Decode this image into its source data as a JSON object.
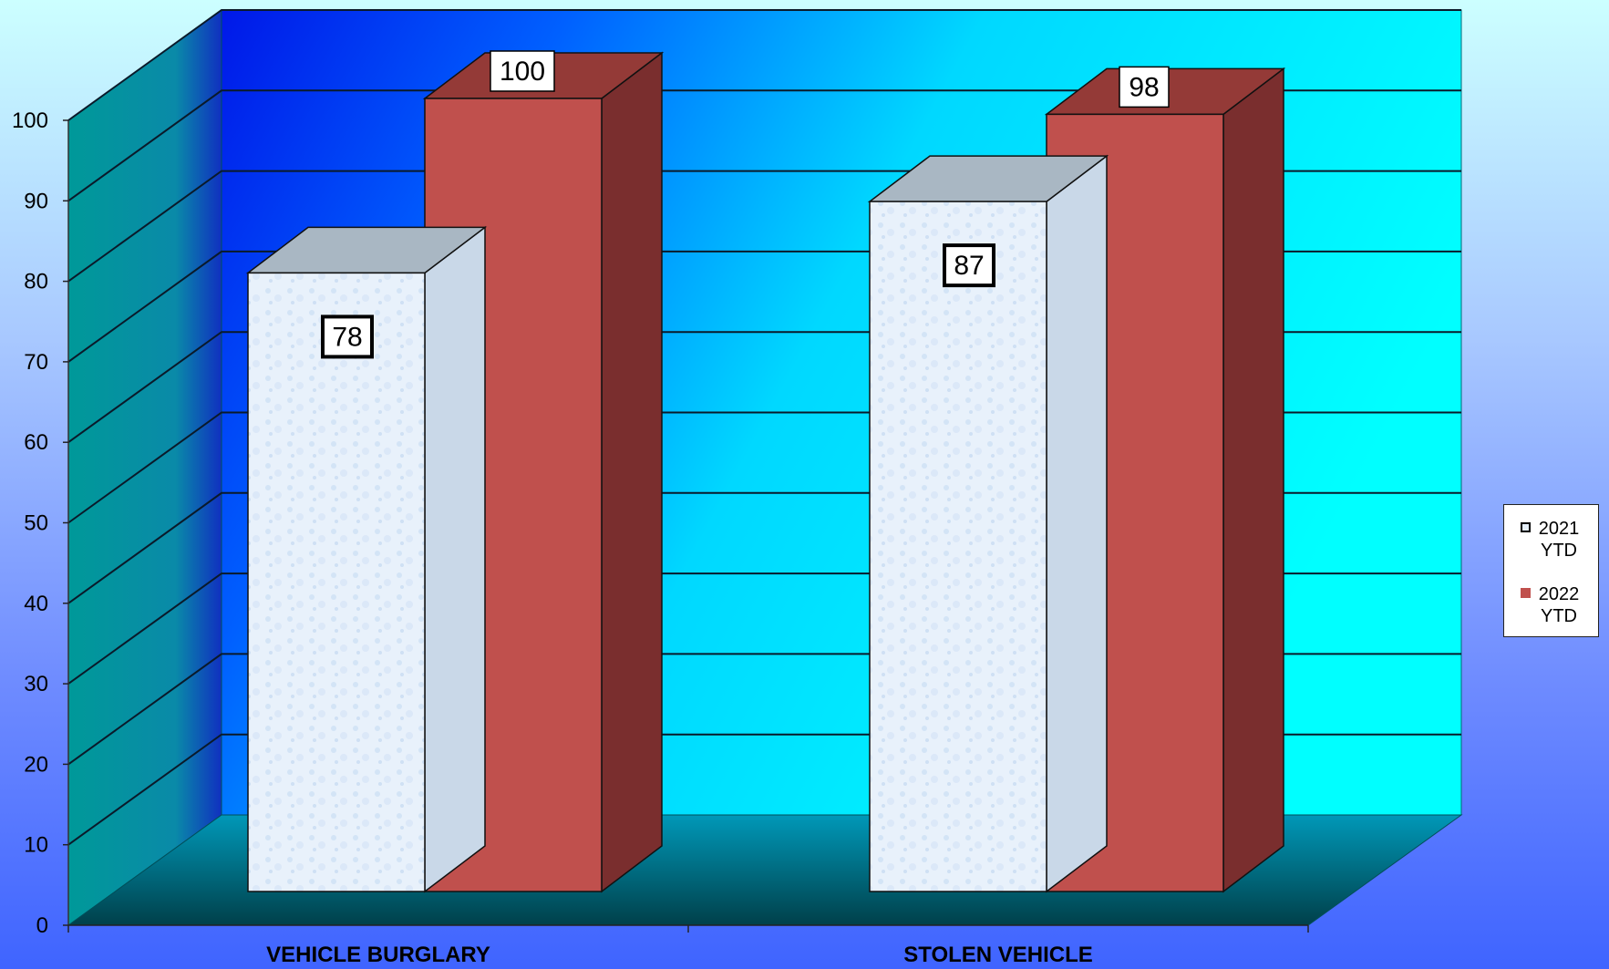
{
  "chart_data": {
    "type": "bar",
    "title": "",
    "xlabel": "",
    "ylabel": "",
    "categories": [
      "VEHICLE BURGLARY",
      "STOLEN VEHICLE"
    ],
    "series": [
      {
        "name": "2021 YTD",
        "values": [
          78,
          87
        ],
        "color": "#e6f0fb"
      },
      {
        "name": "2022 YTD",
        "values": [
          100,
          98
        ],
        "color": "#c0504d"
      }
    ],
    "ylim": [
      0,
      100
    ],
    "yticks": [
      0,
      10,
      20,
      30,
      40,
      50,
      60,
      70,
      80,
      90,
      100
    ],
    "data_labels": true,
    "grid": true,
    "legend_position": "right",
    "three_d": true
  },
  "legend": {
    "items": [
      {
        "label": "2021 YTD"
      },
      {
        "label": "2022 YTD"
      }
    ]
  },
  "colors": {
    "back_wall": "#00e8ff",
    "side_wall": "#0a9e9e",
    "floor": "#007f99",
    "bar_2021_face": "#e6f0fb",
    "bar_2022_face": "#c0504d",
    "bar_2022_side": "#7a2e2e",
    "bar_2022_top": "#943a37",
    "bar_2021_top": "#a9b7c3"
  }
}
